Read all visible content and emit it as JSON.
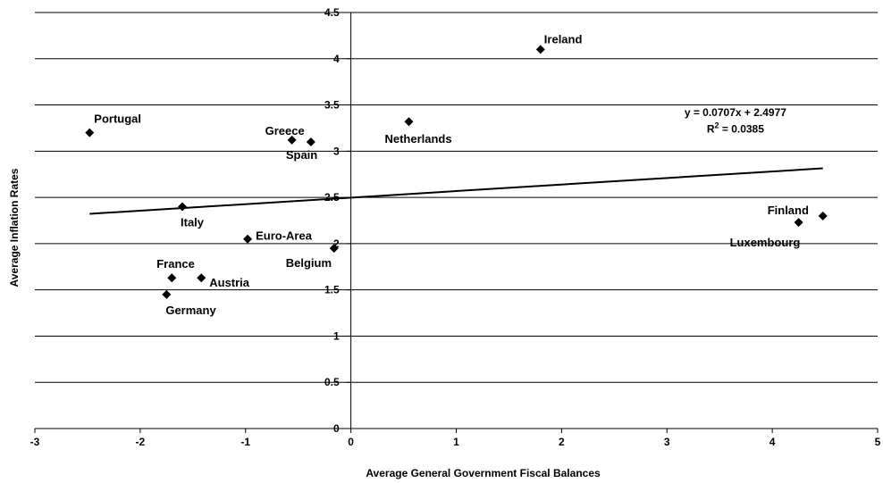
{
  "chart_data": {
    "type": "scatter",
    "xlabel": "Average General Government Fiscal Balances",
    "ylabel": "Average Inflation Rates",
    "xlim": [
      -3,
      5
    ],
    "ylim": [
      0,
      4.5
    ],
    "x_ticks": [
      "-3",
      "-2",
      "-1",
      "0",
      "1",
      "2",
      "3",
      "4",
      "5"
    ],
    "y_ticks": [
      "0",
      "0.5",
      "1",
      "1.5",
      "2",
      "2.5",
      "3",
      "3.5",
      "4",
      "4.5"
    ],
    "grid": "horizontal",
    "marker_color": "#000000",
    "points": [
      {
        "label": "Ireland",
        "x": 1.8,
        "y": 4.1
      },
      {
        "label": "Portugal",
        "x": -2.48,
        "y": 3.2
      },
      {
        "label": "Netherlands",
        "x": 0.55,
        "y": 3.32
      },
      {
        "label": "Greece",
        "x": -0.56,
        "y": 3.12
      },
      {
        "label": "Spain",
        "x": -0.38,
        "y": 3.1
      },
      {
        "label": "Italy",
        "x": -1.6,
        "y": 2.4
      },
      {
        "label": "Euro-Area",
        "x": -0.98,
        "y": 2.05
      },
      {
        "label": "Belgium",
        "x": -0.16,
        "y": 1.95
      },
      {
        "label": "France",
        "x": -1.7,
        "y": 1.63
      },
      {
        "label": "Austria",
        "x": -1.42,
        "y": 1.63
      },
      {
        "label": "Germany",
        "x": -1.75,
        "y": 1.45
      },
      {
        "label": "Finland",
        "x": 4.48,
        "y": 2.3
      },
      {
        "label": "Luxembourg",
        "x": 4.25,
        "y": 2.23
      }
    ],
    "trendline": {
      "x_start": -2.48,
      "x_end": 4.48,
      "slope": 0.0707,
      "intercept": 2.4977,
      "equation": "y = 0.0707x + 2.4977",
      "r2_prefix": "R",
      "r2_sup": "2",
      "r2_suffix": " = 0.0385"
    }
  }
}
